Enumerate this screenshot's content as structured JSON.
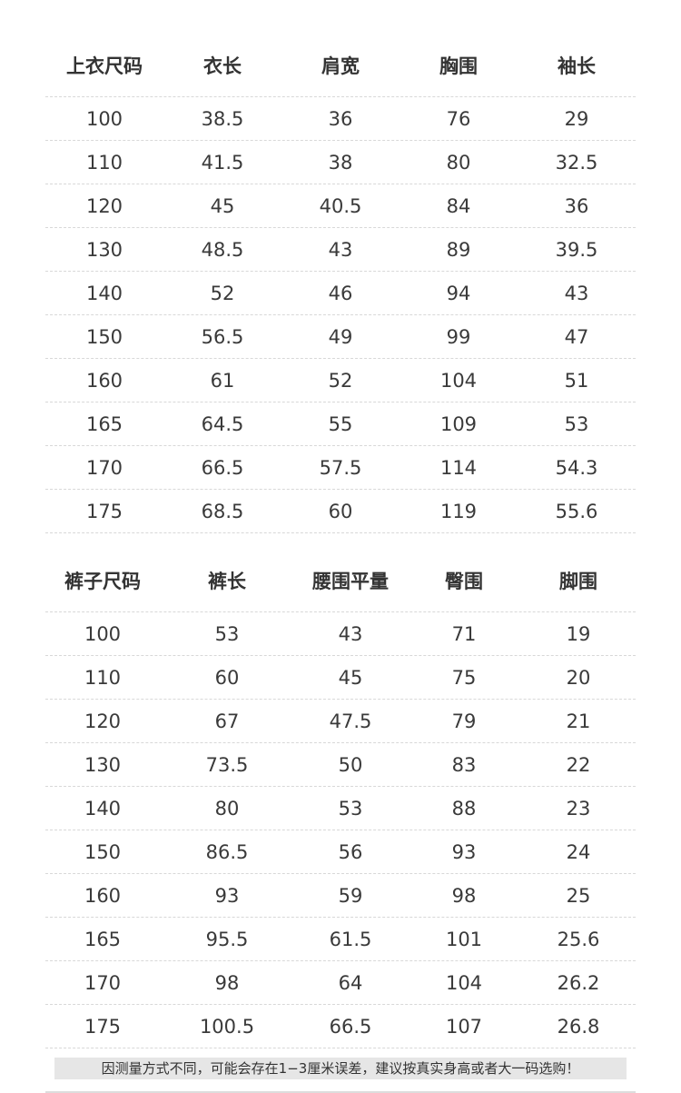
{
  "tops": {
    "headers": [
      "上衣尺码",
      "衣长",
      "肩宽",
      "胸围",
      "袖长"
    ],
    "rows": [
      [
        "100",
        "38.5",
        "36",
        "76",
        "29"
      ],
      [
        "110",
        "41.5",
        "38",
        "80",
        "32.5"
      ],
      [
        "120",
        "45",
        "40.5",
        "84",
        "36"
      ],
      [
        "130",
        "48.5",
        "43",
        "89",
        "39.5"
      ],
      [
        "140",
        "52",
        "46",
        "94",
        "43"
      ],
      [
        "150",
        "56.5",
        "49",
        "99",
        "47"
      ],
      [
        "160",
        "61",
        "52",
        "104",
        "51"
      ],
      [
        "165",
        "64.5",
        "55",
        "109",
        "53"
      ],
      [
        "170",
        "66.5",
        "57.5",
        "114",
        "54.3"
      ],
      [
        "175",
        "68.5",
        "60",
        "119",
        "55.6"
      ]
    ]
  },
  "pants": {
    "headers": [
      "裤子尺码",
      "裤长",
      "腰围平量",
      "臀围",
      "脚围"
    ],
    "rows": [
      [
        "100",
        "53",
        "43",
        "71",
        "19"
      ],
      [
        "110",
        "60",
        "45",
        "75",
        "20"
      ],
      [
        "120",
        "67",
        "47.5",
        "79",
        "21"
      ],
      [
        "130",
        "73.5",
        "50",
        "83",
        "22"
      ],
      [
        "140",
        "80",
        "53",
        "88",
        "23"
      ],
      [
        "150",
        "86.5",
        "56",
        "93",
        "24"
      ],
      [
        "160",
        "93",
        "59",
        "98",
        "25"
      ],
      [
        "165",
        "95.5",
        "61.5",
        "101",
        "25.6"
      ],
      [
        "170",
        "98",
        "64",
        "104",
        "26.2"
      ],
      [
        "175",
        "100.5",
        "66.5",
        "107",
        "26.8"
      ]
    ]
  },
  "note": "因测量方式不同，可能会存在1−3厘米误差，建议按真实身高或者大一码选购！"
}
